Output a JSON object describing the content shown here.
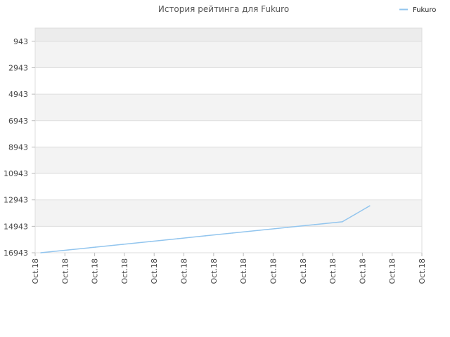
{
  "chart_data": {
    "type": "line",
    "title": "История рейтинга для Fukuro",
    "legend": {
      "position": "top-right",
      "entries": [
        "Fukuro"
      ]
    },
    "xlabel": "",
    "ylabel": "",
    "y_inverted": true,
    "ylim": [
      16943,
      -57
    ],
    "yticks": [
      943,
      2943,
      4943,
      6943,
      8943,
      10943,
      12943,
      14943,
      16943
    ],
    "xtick_labels": [
      "Oct.18",
      "Oct.18",
      "Oct.18",
      "Oct.18",
      "Oct.18",
      "Oct.18",
      "Oct.18",
      "Oct.18",
      "Oct.18",
      "Oct.18",
      "Oct.18",
      "Oct.18",
      "Oct.18",
      "Oct.18"
    ],
    "grid": true,
    "colors": {
      "series": "#92c5ee",
      "band_a": "#f3f3f3",
      "band_b": "#ffffff",
      "band_top": "#ececec",
      "gridline": "#dddddd",
      "frame": "#dddddd"
    },
    "series": [
      {
        "name": "Fukuro",
        "x": [
          0,
          1,
          2,
          3,
          4,
          5,
          6,
          7,
          8,
          9,
          10,
          11,
          12
        ],
        "values": [
          16943,
          16730,
          16517,
          16304,
          16091,
          15878,
          15665,
          15452,
          15239,
          15026,
          14813,
          14600,
          13392
        ]
      }
    ]
  }
}
